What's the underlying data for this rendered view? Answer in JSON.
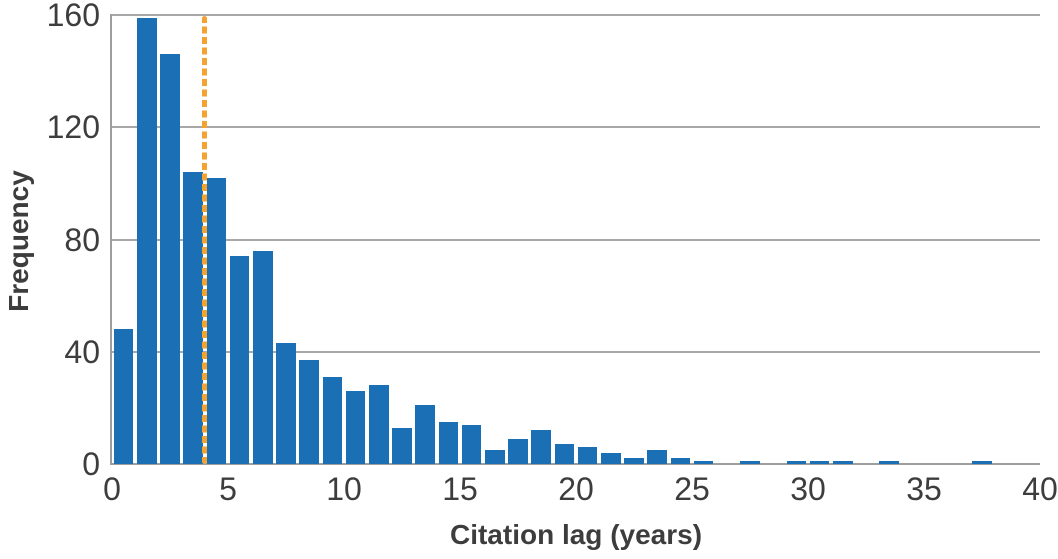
{
  "chart_data": {
    "type": "bar",
    "subtype": "histogram",
    "title": "",
    "xlabel": "Citation lag (years)",
    "ylabel": "Frequency",
    "bin_start": 0,
    "bin_width": 1,
    "categories": [
      "0-1",
      "1-2",
      "2-3",
      "3-4",
      "4-5",
      "5-6",
      "6-7",
      "7-8",
      "8-9",
      "9-10",
      "10-11",
      "11-12",
      "12-13",
      "13-14",
      "14-15",
      "15-16",
      "16-17",
      "17-18",
      "18-19",
      "19-20",
      "20-21",
      "21-22",
      "22-23",
      "23-24",
      "24-25",
      "25-26",
      "26-27",
      "27-28",
      "28-29",
      "29-30",
      "30-31",
      "31-32",
      "32-33",
      "33-34",
      "34-35",
      "35-36",
      "36-37",
      "37-38",
      "38-39",
      "39-40"
    ],
    "values": [
      48,
      159,
      146,
      104,
      102,
      74,
      76,
      43,
      37,
      31,
      26,
      28,
      13,
      21,
      15,
      14,
      5,
      9,
      12,
      7,
      6,
      4,
      2,
      5,
      2,
      1,
      0,
      1,
      0,
      1,
      1,
      1,
      0,
      1,
      0,
      0,
      0,
      1,
      0,
      0
    ],
    "xlim": [
      0,
      40
    ],
    "ylim": [
      0,
      160
    ],
    "x_ticks": [
      0,
      5,
      10,
      15,
      20,
      25,
      30,
      35,
      40
    ],
    "y_ticks": [
      0,
      40,
      80,
      120,
      160
    ],
    "grid": "horizontal",
    "legend": "none",
    "median_line": {
      "x": 4,
      "style": "dashed",
      "color": "#F2A332"
    },
    "bar_color": "#1B6FB5",
    "gridline_color": "#A8A8A8",
    "axis_color": "#9E9E9E",
    "text_color": "#3D3D3D",
    "background_color": "#FFFFFF"
  }
}
